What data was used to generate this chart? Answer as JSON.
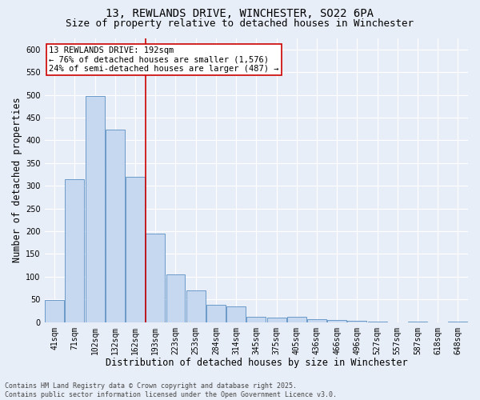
{
  "title_line1": "13, REWLANDS DRIVE, WINCHESTER, SO22 6PA",
  "title_line2": "Size of property relative to detached houses in Winchester",
  "xlabel": "Distribution of detached houses by size in Winchester",
  "ylabel": "Number of detached properties",
  "categories": [
    "41sqm",
    "71sqm",
    "102sqm",
    "132sqm",
    "162sqm",
    "193sqm",
    "223sqm",
    "253sqm",
    "284sqm",
    "314sqm",
    "345sqm",
    "375sqm",
    "405sqm",
    "436sqm",
    "466sqm",
    "496sqm",
    "527sqm",
    "557sqm",
    "587sqm",
    "618sqm",
    "648sqm"
  ],
  "values": [
    48,
    314,
    497,
    424,
    320,
    195,
    105,
    70,
    38,
    34,
    11,
    10,
    12,
    7,
    5,
    3,
    1,
    0,
    1,
    0,
    2
  ],
  "bar_color": "#c5d8f0",
  "bar_edge_color": "#5a8fc2",
  "highlight_index": 5,
  "highlight_line_color": "#cc0000",
  "annotation_text": "13 REWLANDS DRIVE: 192sqm\n← 76% of detached houses are smaller (1,576)\n24% of semi-detached houses are larger (487) →",
  "annotation_box_color": "#ffffff",
  "annotation_box_edge": "#cc0000",
  "ylim": [
    0,
    625
  ],
  "yticks": [
    0,
    50,
    100,
    150,
    200,
    250,
    300,
    350,
    400,
    450,
    500,
    550,
    600
  ],
  "bg_color": "#e8eef8",
  "plot_bg_color": "#e8eef8",
  "footer_text": "Contains HM Land Registry data © Crown copyright and database right 2025.\nContains public sector information licensed under the Open Government Licence v3.0.",
  "title_fontsize": 10,
  "subtitle_fontsize": 9,
  "tick_fontsize": 7,
  "label_fontsize": 8.5,
  "annotation_fontsize": 7.5,
  "footer_fontsize": 6
}
